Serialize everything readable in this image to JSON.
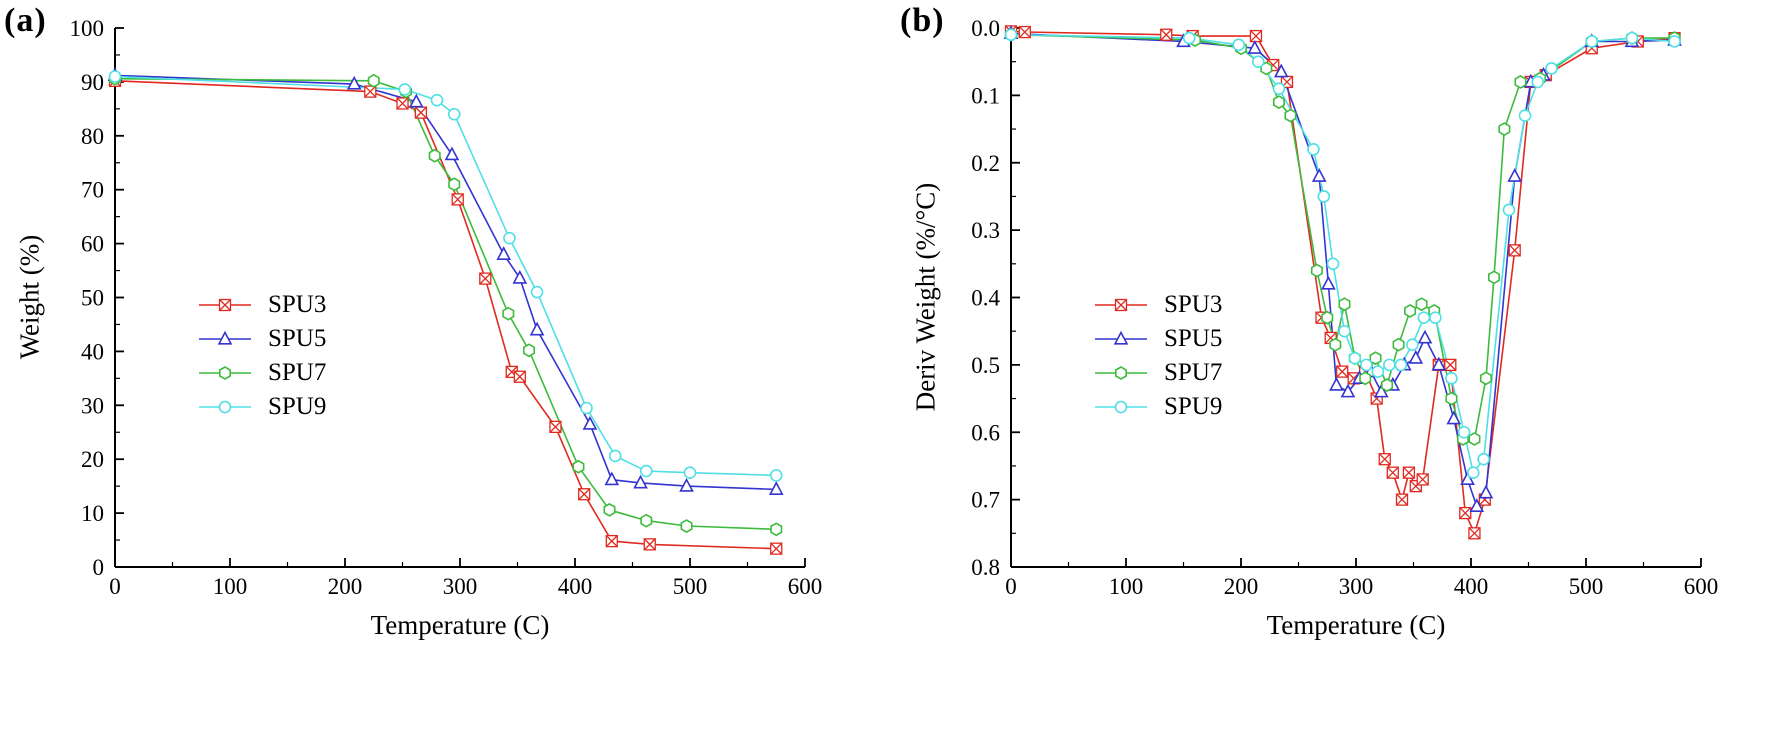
{
  "figure": {
    "background": "#ffffff"
  },
  "chart_data": [
    {
      "panel_label": "(a)",
      "type": "line",
      "xlabel": "Temperature (C)",
      "ylabel": "Weight (%)",
      "xlim": [
        0,
        600
      ],
      "ylim": [
        0,
        100
      ],
      "y_inverted": false,
      "grid": false,
      "legend_position": "inside-left-middle",
      "xticks": [
        0,
        100,
        200,
        300,
        400,
        500,
        600
      ],
      "xtick_labels": [
        "0",
        "100",
        "200",
        "300",
        "400",
        "500",
        "600"
      ],
      "yticks": [
        0,
        10,
        20,
        30,
        40,
        50,
        60,
        70,
        80,
        90,
        100
      ],
      "ytick_labels": [
        "0",
        "10",
        "20",
        "30",
        "40",
        "50",
        "60",
        "70",
        "80",
        "90",
        "100"
      ],
      "series": [
        {
          "name": "SPU3",
          "color": "#e02a20",
          "marker": "x-square",
          "x": [
            0,
            222,
            250,
            266,
            298,
            322,
            345,
            352,
            383,
            408,
            432,
            465,
            575
          ],
          "y": [
            90.2,
            88.2,
            86.0,
            84.3,
            68.2,
            53.5,
            36.2,
            35.3,
            26.0,
            13.5,
            4.8,
            4.2,
            3.4
          ]
        },
        {
          "name": "SPU5",
          "color": "#3434d1",
          "marker": "triangle",
          "x": [
            0,
            208,
            262,
            293,
            338,
            352,
            367,
            413,
            432,
            457,
            497,
            575
          ],
          "y": [
            91.2,
            89.6,
            86.3,
            76.5,
            58.0,
            53.6,
            44.0,
            26.5,
            16.2,
            15.6,
            15.0,
            14.4
          ]
        },
        {
          "name": "SPU7",
          "color": "#3dbb3d",
          "marker": "hexagon",
          "x": [
            0,
            225,
            253,
            278,
            295,
            342,
            360,
            403,
            430,
            462,
            497,
            575
          ],
          "y": [
            90.6,
            90.2,
            88.2,
            76.3,
            71.0,
            47.0,
            40.2,
            18.6,
            10.6,
            8.6,
            7.6,
            7.0
          ]
        },
        {
          "name": "SPU9",
          "color": "#4fdfe4",
          "marker": "circle",
          "x": [
            0,
            252,
            280,
            295,
            343,
            367,
            410,
            435,
            462,
            500,
            575
          ],
          "y": [
            91.0,
            88.6,
            86.6,
            84.0,
            61.0,
            51.0,
            29.5,
            20.6,
            17.8,
            17.5,
            17.0
          ]
        }
      ]
    },
    {
      "panel_label": "(b)",
      "type": "line",
      "xlabel": "Temperature (C)",
      "ylabel": "Deriv Weight (%/°C)",
      "xlim": [
        0,
        600
      ],
      "ylim": [
        0,
        0.8
      ],
      "y_inverted": true,
      "grid": false,
      "legend_position": "inside-left-middle",
      "xticks": [
        0,
        100,
        200,
        300,
        400,
        500,
        600
      ],
      "xtick_labels": [
        "0",
        "100",
        "200",
        "300",
        "400",
        "500",
        "600"
      ],
      "yticks": [
        0,
        0.1,
        0.2,
        0.3,
        0.4,
        0.5,
        0.6,
        0.7,
        0.8
      ],
      "ytick_labels": [
        "0.0",
        "0.1",
        "0.2",
        "0.3",
        "0.4",
        "0.5",
        "0.6",
        "0.7",
        "0.8"
      ],
      "series": [
        {
          "name": "SPU3",
          "color": "#e02a20",
          "marker": "x-square",
          "x": [
            0,
            12,
            135,
            158,
            213,
            228,
            240,
            270,
            278,
            288,
            298,
            308,
            318,
            325,
            332,
            340,
            346,
            352,
            358,
            372,
            382,
            395,
            403,
            412,
            438,
            452,
            465,
            505,
            545,
            577
          ],
          "y": [
            0.005,
            0.006,
            0.01,
            0.012,
            0.012,
            0.055,
            0.08,
            0.43,
            0.46,
            0.51,
            0.52,
            0.51,
            0.55,
            0.64,
            0.66,
            0.7,
            0.66,
            0.68,
            0.67,
            0.5,
            0.5,
            0.72,
            0.75,
            0.7,
            0.33,
            0.08,
            0.07,
            0.03,
            0.02,
            0.015
          ]
        },
        {
          "name": "SPU5",
          "color": "#3434d1",
          "marker": "triangle",
          "x": [
            0,
            150,
            212,
            235,
            268,
            276,
            283,
            293,
            303,
            313,
            322,
            332,
            342,
            352,
            360,
            372,
            385,
            397,
            405,
            413,
            438,
            452,
            463,
            505,
            540,
            577
          ],
          "y": [
            0.008,
            0.02,
            0.03,
            0.065,
            0.22,
            0.38,
            0.53,
            0.54,
            0.52,
            0.51,
            0.54,
            0.53,
            0.5,
            0.49,
            0.46,
            0.5,
            0.58,
            0.67,
            0.71,
            0.69,
            0.22,
            0.08,
            0.07,
            0.02,
            0.02,
            0.018
          ]
        },
        {
          "name": "SPU7",
          "color": "#3dbb3d",
          "marker": "hexagon",
          "x": [
            0,
            160,
            200,
            222,
            233,
            243,
            266,
            275,
            282,
            290,
            299,
            308,
            317,
            327,
            337,
            347,
            357,
            368,
            383,
            393,
            403,
            413,
            420,
            429,
            443,
            460,
            505,
            540,
            577
          ],
          "y": [
            0.01,
            0.018,
            0.03,
            0.06,
            0.11,
            0.13,
            0.36,
            0.43,
            0.47,
            0.41,
            0.49,
            0.52,
            0.49,
            0.53,
            0.47,
            0.42,
            0.41,
            0.42,
            0.55,
            0.61,
            0.61,
            0.52,
            0.37,
            0.15,
            0.08,
            0.075,
            0.02,
            0.015,
            0.015
          ]
        },
        {
          "name": "SPU9",
          "color": "#4fdfe4",
          "marker": "circle",
          "x": [
            0,
            155,
            198,
            215,
            233,
            263,
            272,
            280,
            290,
            299,
            309,
            319,
            329,
            339,
            349,
            359,
            369,
            383,
            394,
            402,
            411,
            433,
            447,
            458,
            470,
            505,
            540,
            577
          ],
          "y": [
            0.01,
            0.015,
            0.025,
            0.05,
            0.09,
            0.18,
            0.25,
            0.35,
            0.45,
            0.49,
            0.5,
            0.51,
            0.5,
            0.5,
            0.47,
            0.43,
            0.43,
            0.52,
            0.6,
            0.66,
            0.64,
            0.27,
            0.13,
            0.08,
            0.06,
            0.02,
            0.015,
            0.02
          ]
        }
      ]
    }
  ]
}
